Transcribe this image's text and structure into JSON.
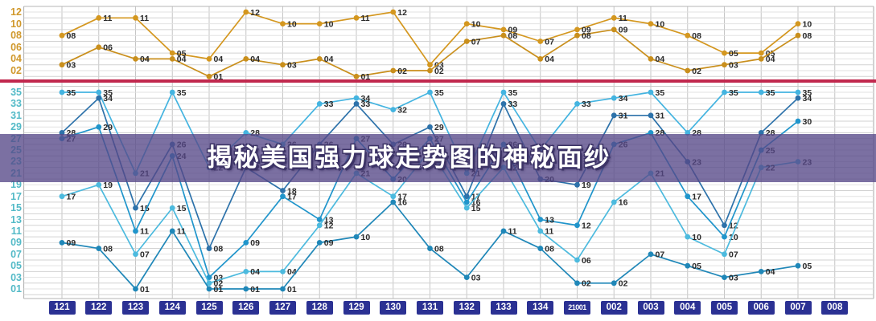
{
  "title": {
    "banner_text": "揭秘美国强力球走势图的神秘面纱"
  },
  "colors": {
    "divider_red": "#c1284e",
    "banner_purple": "#564888",
    "issue_tile_navy": "#2b3193",
    "top_axis_label": "#d0982b",
    "main_axis_label": "#53bac7",
    "point_label": "#2a2a2a"
  },
  "chart_data": {
    "type": "line",
    "title": "揭秘美国强力球走势图的神秘面纱",
    "top_axis_labels": [
      "12",
      "10",
      "08",
      "06",
      "04",
      "02"
    ],
    "main_axis_labels": [
      "35",
      "33",
      "31",
      "29",
      "27",
      "25",
      "23",
      "21",
      "19",
      "17",
      "15",
      "13",
      "11",
      "09",
      "07",
      "05",
      "03",
      "01"
    ],
    "issues": [
      "121",
      "122",
      "123",
      "124",
      "125",
      "126",
      "127",
      "128",
      "129",
      "130",
      "131",
      "132",
      "133",
      "134",
      "21001",
      "002",
      "003",
      "004",
      "005",
      "006",
      "007",
      "008"
    ],
    "top_ylim": [
      1,
      12
    ],
    "main_ylim": [
      1,
      35
    ],
    "grid": true,
    "back_series": [
      {
        "name": "back-ball-1",
        "color": "#d4971f",
        "values": [
          8,
          11,
          11,
          5,
          4,
          12,
          10,
          10,
          11,
          12,
          3,
          10,
          9,
          7,
          9,
          11,
          10,
          8,
          5,
          5,
          10,
          null
        ]
      },
      {
        "name": "back-ball-2",
        "color": "#c98f1c",
        "values": [
          3,
          6,
          4,
          4,
          1,
          4,
          3,
          4,
          1,
          2,
          2,
          7,
          8,
          4,
          8,
          9,
          4,
          2,
          3,
          4,
          8,
          null
        ]
      }
    ],
    "front_series": [
      {
        "name": "front-pos-5",
        "color": "#44b4e0",
        "values": [
          35,
          35,
          21,
          35,
          22,
          28,
          26,
          33,
          34,
          32,
          35,
          21,
          35,
          25,
          33,
          34,
          35,
          28,
          35,
          35,
          35,
          null
        ]
      },
      {
        "name": "front-pos-4",
        "color": "#2d72aa",
        "values": [
          28,
          34,
          15,
          26,
          8,
          22,
          18,
          26,
          33,
          26,
          29,
          17,
          33,
          20,
          19,
          31,
          31,
          23,
          12,
          28,
          34,
          null
        ]
      },
      {
        "name": "front-pos-3",
        "color": "#2095cb",
        "values": [
          27,
          29,
          11,
          24,
          3,
          9,
          17,
          13,
          27,
          20,
          27,
          16,
          26,
          13,
          12,
          26,
          28,
          17,
          10,
          25,
          30,
          null
        ]
      },
      {
        "name": "front-pos-2",
        "color": "#4cbade",
        "values": [
          17,
          19,
          7,
          15,
          2,
          4,
          4,
          12,
          21,
          17,
          25,
          15,
          22,
          11,
          6,
          16,
          21,
          10,
          7,
          22,
          23,
          null
        ]
      },
      {
        "name": "front-pos-1",
        "color": "#1f87b8",
        "values": [
          9,
          8,
          1,
          11,
          1,
          1,
          1,
          9,
          10,
          16,
          8,
          3,
          11,
          8,
          2,
          2,
          7,
          5,
          3,
          4,
          5,
          null
        ]
      }
    ]
  }
}
